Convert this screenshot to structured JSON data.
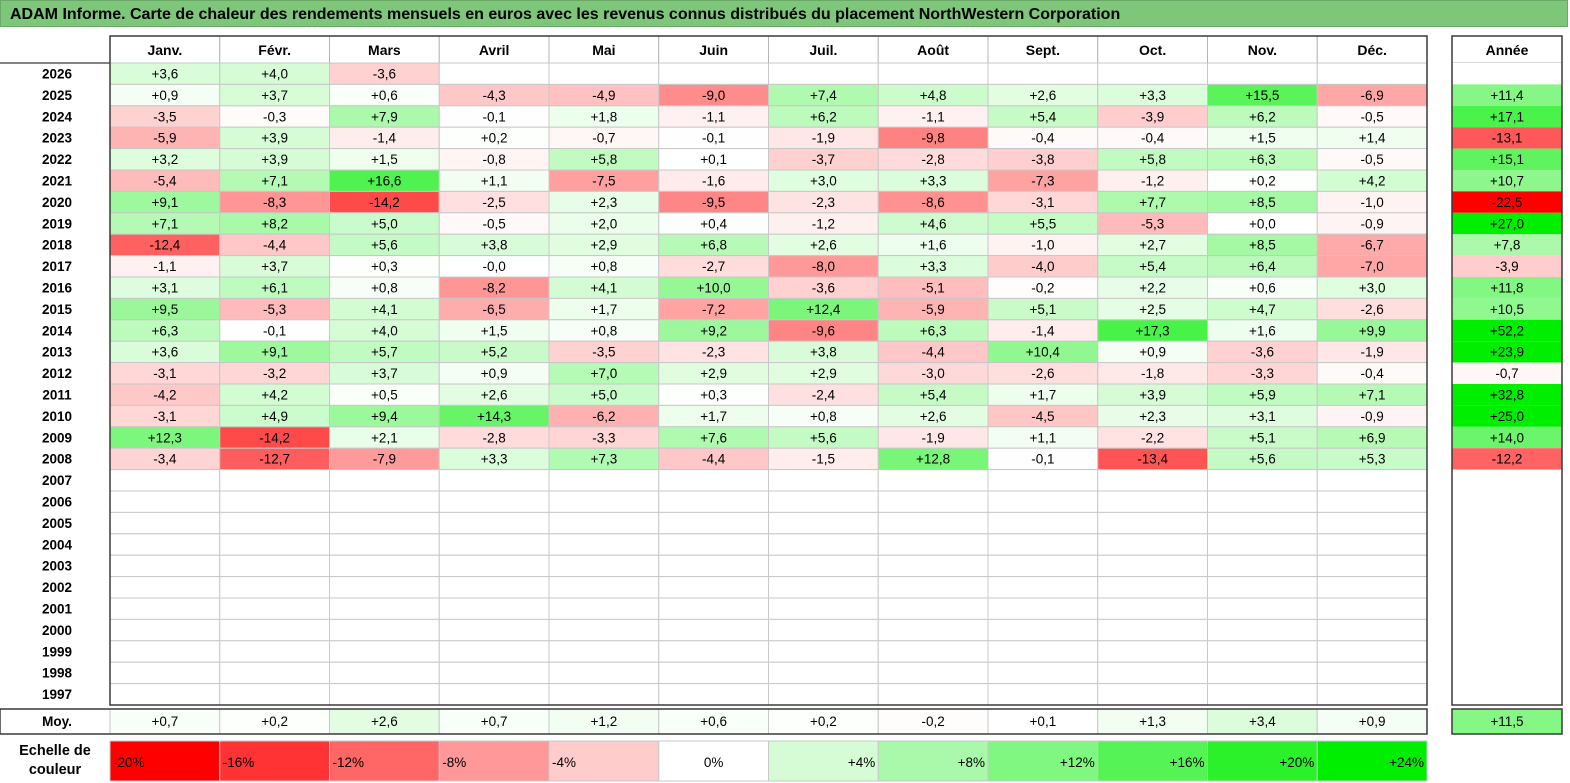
{
  "title": "ADAM Informe. Carte de chaleur des rendements mensuels en euros avec les revenus connus distribués du placement NorthWestern Corporation",
  "chart_data": {
    "type": "heatmap",
    "title": "ADAM Informe. Carte de chaleur des rendements mensuels en euros avec les revenus connus distribués du placement NorthWestern Corporation",
    "months": [
      "Janv.",
      "Févr.",
      "Mars",
      "Avril",
      "Mai",
      "Juin",
      "Juil.",
      "Août",
      "Sept.",
      "Oct.",
      "Nov.",
      "Déc."
    ],
    "year_header": "Année",
    "rows": [
      {
        "year": "2026",
        "values": [
          "+3,6",
          "+4,0",
          "-3,6",
          null,
          null,
          null,
          null,
          null,
          null,
          null,
          null,
          null
        ],
        "annual": null
      },
      {
        "year": "2025",
        "values": [
          "+0,9",
          "+3,7",
          "+0,6",
          "-4,3",
          "-4,9",
          "-9,0",
          "+7,4",
          "+4,8",
          "+2,6",
          "+3,3",
          "+15,5",
          "-6,9"
        ],
        "annual": "+11,4"
      },
      {
        "year": "2024",
        "values": [
          "-3,5",
          "-0,3",
          "+7,9",
          "-0,1",
          "+1,8",
          "-1,1",
          "+6,2",
          "-1,1",
          "+5,4",
          "-3,9",
          "+6,2",
          "-0,5"
        ],
        "annual": "+17,1"
      },
      {
        "year": "2023",
        "values": [
          "-5,9",
          "+3,9",
          "-1,4",
          "+0,2",
          "-0,7",
          "-0,1",
          "-1,9",
          "-9,8",
          "-0,4",
          "-0,4",
          "+1,5",
          "+1,4"
        ],
        "annual": "-13,1"
      },
      {
        "year": "2022",
        "values": [
          "+3,2",
          "+3,9",
          "+1,5",
          "-0,8",
          "+5,8",
          "+0,1",
          "-3,7",
          "-2,8",
          "-3,8",
          "+5,8",
          "+6,3",
          "-0,5"
        ],
        "annual": "+15,1"
      },
      {
        "year": "2021",
        "values": [
          "-5,4",
          "+7,1",
          "+16,6",
          "+1,1",
          "-7,5",
          "-1,6",
          "+3,0",
          "+3,3",
          "-7,3",
          "-1,2",
          "+0,2",
          "+4,2"
        ],
        "annual": "+10,7"
      },
      {
        "year": "2020",
        "values": [
          "+9,1",
          "-8,3",
          "-14,2",
          "-2,5",
          "+2,3",
          "-9,5",
          "-2,3",
          "-8,6",
          "-3,1",
          "+7,7",
          "+8,5",
          "-1,0"
        ],
        "annual": "-22,5"
      },
      {
        "year": "2019",
        "values": [
          "+7,1",
          "+8,2",
          "+5,0",
          "-0,5",
          "+2,0",
          "+0,4",
          "-1,2",
          "+4,6",
          "+5,5",
          "-5,3",
          "+0,0",
          "-0,9"
        ],
        "annual": "+27,0"
      },
      {
        "year": "2018",
        "values": [
          "-12,4",
          "-4,4",
          "+5,6",
          "+3,8",
          "+2,9",
          "+6,8",
          "+2,6",
          "+1,6",
          "-1,0",
          "+2,7",
          "+8,5",
          "-6,7"
        ],
        "annual": "+7,8"
      },
      {
        "year": "2017",
        "values": [
          "-1,1",
          "+3,7",
          "+0,3",
          "-0,0",
          "+0,8",
          "-2,7",
          "-8,0",
          "+3,3",
          "-4,0",
          "+5,4",
          "+6,4",
          "-7,0"
        ],
        "annual": "-3,9"
      },
      {
        "year": "2016",
        "values": [
          "+3,1",
          "+6,1",
          "+0,8",
          "-8,2",
          "+4,1",
          "+10,0",
          "-3,6",
          "-5,1",
          "-0,2",
          "+2,2",
          "+0,6",
          "+3,0"
        ],
        "annual": "+11,8"
      },
      {
        "year": "2015",
        "values": [
          "+9,5",
          "-5,3",
          "+4,1",
          "-6,5",
          "+1,7",
          "-7,2",
          "+12,4",
          "-5,9",
          "+5,1",
          "+2,5",
          "+4,7",
          "-2,6"
        ],
        "annual": "+10,5"
      },
      {
        "year": "2014",
        "values": [
          "+6,3",
          "-0,1",
          "+4,0",
          "+1,5",
          "+0,8",
          "+9,2",
          "-9,6",
          "+6,3",
          "-1,4",
          "+17,3",
          "+1,6",
          "+9,9"
        ],
        "annual": "+52,2"
      },
      {
        "year": "2013",
        "values": [
          "+3,6",
          "+9,1",
          "+5,7",
          "+5,2",
          "-3,5",
          "-2,3",
          "+3,8",
          "-4,4",
          "+10,4",
          "+0,9",
          "-3,6",
          "-1,9"
        ],
        "annual": "+23,9"
      },
      {
        "year": "2012",
        "values": [
          "-3,1",
          "-3,2",
          "+3,7",
          "+0,9",
          "+7,0",
          "+2,9",
          "+2,9",
          "-3,0",
          "-2,6",
          "-1,8",
          "-3,3",
          "-0,4"
        ],
        "annual": "-0,7"
      },
      {
        "year": "2011",
        "values": [
          "-4,2",
          "+4,2",
          "+0,5",
          "+2,6",
          "+5,0",
          "+0,3",
          "-2,4",
          "+5,4",
          "+1,7",
          "+3,9",
          "+5,9",
          "+7,1"
        ],
        "annual": "+32,8"
      },
      {
        "year": "2010",
        "values": [
          "-3,1",
          "+4,9",
          "+9,4",
          "+14,3",
          "-6,2",
          "+1,7",
          "+0,8",
          "+2,6",
          "-4,5",
          "+2,3",
          "+3,1",
          "-0,9"
        ],
        "annual": "+25,0"
      },
      {
        "year": "2009",
        "values": [
          "+12,3",
          "-14,2",
          "+2,1",
          "-2,8",
          "-3,3",
          "+7,6",
          "+5,6",
          "-1,9",
          "+1,1",
          "-2,2",
          "+5,1",
          "+6,9"
        ],
        "annual": "+14,0"
      },
      {
        "year": "2008",
        "values": [
          "-3,4",
          "-12,7",
          "-7,9",
          "+3,3",
          "+7,3",
          "-4,4",
          "-1,5",
          "+12,8",
          "-0,1",
          "-13,4",
          "+5,6",
          "+5,3"
        ],
        "annual": "-12,2"
      },
      {
        "year": "2007",
        "values": [
          null,
          null,
          null,
          null,
          null,
          null,
          null,
          null,
          null,
          null,
          null,
          null
        ],
        "annual": null
      },
      {
        "year": "2006",
        "values": [
          null,
          null,
          null,
          null,
          null,
          null,
          null,
          null,
          null,
          null,
          null,
          null
        ],
        "annual": null
      },
      {
        "year": "2005",
        "values": [
          null,
          null,
          null,
          null,
          null,
          null,
          null,
          null,
          null,
          null,
          null,
          null
        ],
        "annual": null
      },
      {
        "year": "2004",
        "values": [
          null,
          null,
          null,
          null,
          null,
          null,
          null,
          null,
          null,
          null,
          null,
          null
        ],
        "annual": null
      },
      {
        "year": "2003",
        "values": [
          null,
          null,
          null,
          null,
          null,
          null,
          null,
          null,
          null,
          null,
          null,
          null
        ],
        "annual": null
      },
      {
        "year": "2002",
        "values": [
          null,
          null,
          null,
          null,
          null,
          null,
          null,
          null,
          null,
          null,
          null,
          null
        ],
        "annual": null
      },
      {
        "year": "2001",
        "values": [
          null,
          null,
          null,
          null,
          null,
          null,
          null,
          null,
          null,
          null,
          null,
          null
        ],
        "annual": null
      },
      {
        "year": "2000",
        "values": [
          null,
          null,
          null,
          null,
          null,
          null,
          null,
          null,
          null,
          null,
          null,
          null
        ],
        "annual": null
      },
      {
        "year": "1999",
        "values": [
          null,
          null,
          null,
          null,
          null,
          null,
          null,
          null,
          null,
          null,
          null,
          null
        ],
        "annual": null
      },
      {
        "year": "1998",
        "values": [
          null,
          null,
          null,
          null,
          null,
          null,
          null,
          null,
          null,
          null,
          null,
          null
        ],
        "annual": null
      },
      {
        "year": "1997",
        "values": [
          null,
          null,
          null,
          null,
          null,
          null,
          null,
          null,
          null,
          null,
          null,
          null
        ],
        "annual": null
      }
    ],
    "average": {
      "label": "Moy.",
      "values": [
        "+0,7",
        "+0,2",
        "+2,6",
        "+0,7",
        "+1,2",
        "+0,6",
        "+0,2",
        "-0,2",
        "+0,1",
        "+1,3",
        "+3,4",
        "+0,9"
      ],
      "annual": "+11,5"
    },
    "color_scale": {
      "label": "Echelle de couleur",
      "stops": [
        "-20%",
        "-16%",
        "-12%",
        "-8%",
        "-4%",
        "0%",
        "+4%",
        "+8%",
        "+12%",
        "+16%",
        "+20%",
        "+24%"
      ],
      "negative_color": "#ff0000",
      "neutral_color": "#ffffff",
      "positive_color": "#00ee00"
    }
  }
}
